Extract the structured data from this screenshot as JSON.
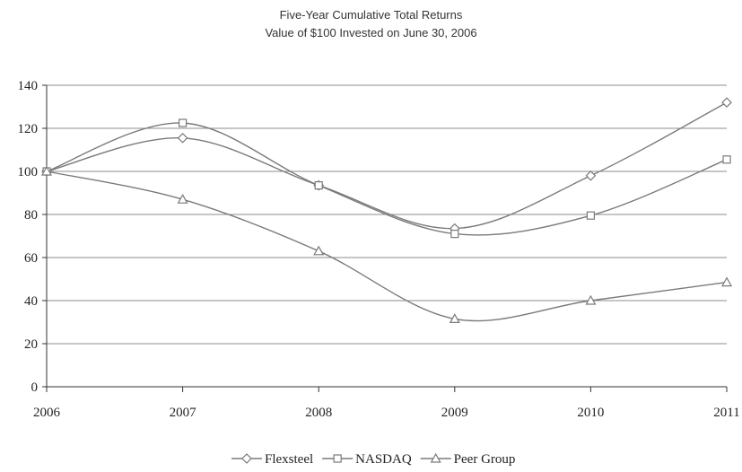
{
  "chart_data": {
    "type": "line",
    "title": "Five-Year Cumulative Total Returns",
    "subtitle": "Value of $100 Invested on June 30, 2006",
    "xlabel": "",
    "ylabel": "",
    "x": [
      "2006",
      "2007",
      "2008",
      "2009",
      "2010",
      "2011"
    ],
    "ylim": [
      0,
      140
    ],
    "yticks": [
      "0",
      "20",
      "40",
      "60",
      "80",
      "100",
      "120",
      "140"
    ],
    "grid": true,
    "legend_position": "bottom",
    "series": [
      {
        "name": "Flexsteel",
        "marker": "diamond",
        "values": [
          100,
          115.5,
          93.5,
          73.5,
          98,
          132
        ]
      },
      {
        "name": "NASDAQ",
        "marker": "square",
        "values": [
          100,
          122.5,
          93.5,
          71,
          79.5,
          105.5
        ]
      },
      {
        "name": "Peer Group",
        "marker": "triangle",
        "values": [
          100,
          87,
          63,
          31.5,
          40,
          48.5
        ]
      }
    ],
    "colors": {
      "line": "#7a7a7a",
      "grid": "#8c8c8c",
      "axis": "#333333",
      "marker_fill": "#ffffff"
    }
  }
}
